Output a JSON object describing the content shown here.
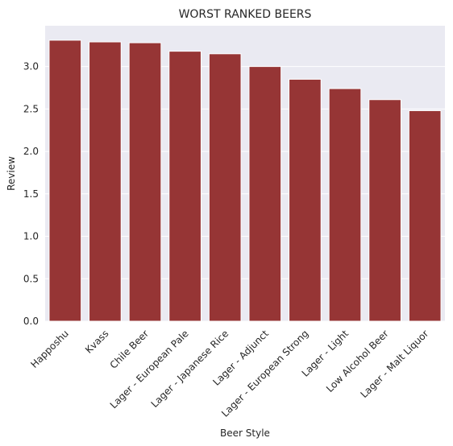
{
  "chart_data": {
    "type": "bar",
    "title": "WORST RANKED BEERS",
    "xlabel": "Beer Style",
    "ylabel": "Review",
    "categories": [
      "Happoshu",
      "Kvass",
      "Chile Beer",
      "Lager - European Pale",
      "Lager - Japanese Rice",
      "Lager - Adjunct",
      "Lager - European Strong",
      "Lager - Light",
      "Low Alcohol Beer",
      "Lager - Malt Liquor"
    ],
    "values": [
      3.31,
      3.29,
      3.28,
      3.18,
      3.15,
      3.0,
      2.85,
      2.74,
      2.61,
      2.48
    ],
    "ylim": [
      0,
      3.48
    ],
    "yticks": [
      "0.0",
      "0.5",
      "1.0",
      "1.5",
      "2.0",
      "2.5",
      "3.0"
    ],
    "grid": true,
    "colors": {
      "bar": "#963535",
      "background": "#eaeaf2",
      "grid": "#ffffff"
    }
  }
}
